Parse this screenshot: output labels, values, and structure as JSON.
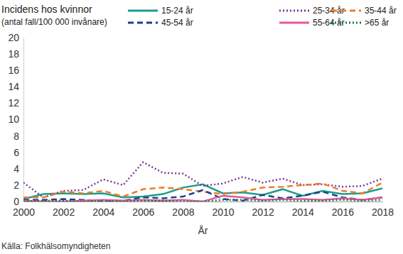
{
  "chart_data": {
    "type": "line",
    "title": "Incidens hos kvinnor",
    "subtitle": "(antal fall/100 000 invånare)",
    "x_label": "År",
    "source": "Källa: Folkhälsomyndigheten",
    "x": [
      2000,
      2001,
      2002,
      2003,
      2004,
      2005,
      2006,
      2007,
      2008,
      2009,
      2010,
      2011,
      2012,
      2013,
      2014,
      2015,
      2016,
      2017,
      2018
    ],
    "xlim": [
      2000,
      2018
    ],
    "xticks": [
      2000,
      2002,
      2004,
      2006,
      2008,
      2010,
      2012,
      2014,
      2016,
      2018
    ],
    "ylim": [
      0,
      20
    ],
    "yticks": [
      0,
      2,
      4,
      6,
      8,
      10,
      12,
      14,
      16,
      18,
      20
    ],
    "grid": false,
    "legend": "top",
    "series": [
      {
        "name": "15-24 år",
        "color": "#1a9e8c",
        "line_style": "solid",
        "values": [
          0.3,
          0.9,
          1.0,
          0.9,
          1.0,
          0.5,
          0.6,
          0.9,
          1.7,
          2.1,
          1.0,
          1.1,
          0.8,
          1.5,
          0.7,
          1.3,
          0.9,
          1.0,
          1.6
        ]
      },
      {
        "name": "25-34 år",
        "color": "#7b3b97",
        "line_style": "dotted",
        "values": [
          2.3,
          0.5,
          1.3,
          1.4,
          2.7,
          2.0,
          4.8,
          3.5,
          3.4,
          1.9,
          2.2,
          3.0,
          2.3,
          2.8,
          2.0,
          2.1,
          1.8,
          1.9,
          2.8
        ]
      },
      {
        "name": "35-44 år",
        "color": "#f07d28",
        "line_style": "dashed",
        "values": [
          0.5,
          0.5,
          1.2,
          1.0,
          1.3,
          0.6,
          1.5,
          1.7,
          1.5,
          1.2,
          0.9,
          1.2,
          1.7,
          1.8,
          2.0,
          2.2,
          1.3,
          1.0,
          2.3
        ]
      },
      {
        "name": "45-54 år",
        "color": "#1d3f8f",
        "line_style": "dashed",
        "values": [
          0.2,
          0.2,
          0.3,
          0.2,
          0.0,
          0.1,
          0.5,
          0.4,
          0.6,
          1.4,
          0.3,
          0.1,
          0.8,
          0.4,
          0.7,
          1.2,
          0.5,
          0.2,
          0.5
        ]
      },
      {
        "name": "55-64 år",
        "color": "#e0589e",
        "line_style": "solid",
        "values": [
          0.1,
          0.0,
          0.0,
          0.1,
          0.2,
          0.1,
          0.2,
          0.1,
          0.2,
          0.0,
          0.7,
          0.5,
          0.2,
          0.3,
          0.3,
          0.2,
          0.4,
          0.2,
          0.5
        ]
      },
      {
        "name": ">65 år",
        "color": "#1a7a3c",
        "line_style": "dotted",
        "values": [
          0.0,
          0.1,
          0.1,
          0.0,
          0.1,
          0.0,
          0.1,
          0.1,
          0.0,
          0.0,
          0.2,
          0.2,
          0.1,
          0.2,
          0.1,
          0.1,
          0.2,
          0.1,
          0.2
        ]
      }
    ]
  }
}
